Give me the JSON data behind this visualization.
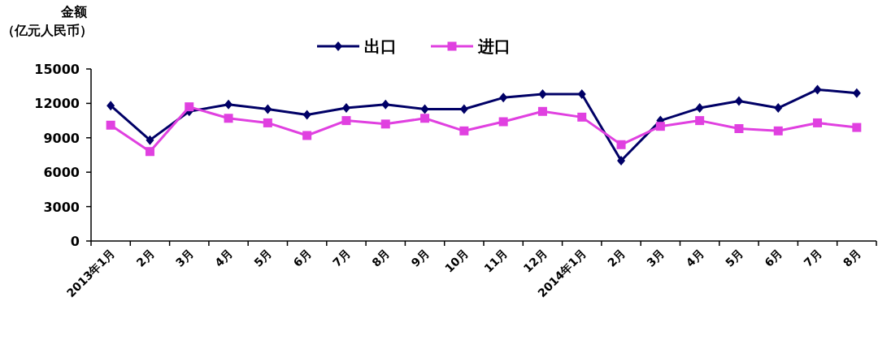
{
  "chart_data": {
    "type": "line",
    "ylabel": "金额（亿元人民币）",
    "categories": [
      "2013年1月",
      "2月",
      "3月",
      "4月",
      "5月",
      "6月",
      "7月",
      "8月",
      "9月",
      "10月",
      "11月",
      "12月",
      "2014年1月",
      "2月",
      "3月",
      "4月",
      "5月",
      "6月",
      "7月",
      "8月"
    ],
    "series": [
      {
        "name": "出口",
        "color": "#000066",
        "marker": "diamond",
        "values": [
          11800,
          8800,
          11300,
          11900,
          11500,
          11000,
          11600,
          11900,
          11500,
          11500,
          12500,
          12800,
          12800,
          7000,
          10500,
          11600,
          12200,
          11600,
          13200,
          12900
        ]
      },
      {
        "name": "进口",
        "color": "#e040e0",
        "marker": "square",
        "values": [
          10100,
          7800,
          11700,
          10700,
          10300,
          9200,
          10500,
          10200,
          10700,
          9600,
          10400,
          11300,
          10800,
          8400,
          10000,
          10500,
          9800,
          9600,
          10300,
          9900
        ]
      }
    ],
    "ylim": [
      0,
      15000
    ],
    "yticks": [
      0,
      3000,
      6000,
      9000,
      12000,
      15000
    ],
    "grid": false,
    "legend": "top",
    "line_style": "solid"
  }
}
